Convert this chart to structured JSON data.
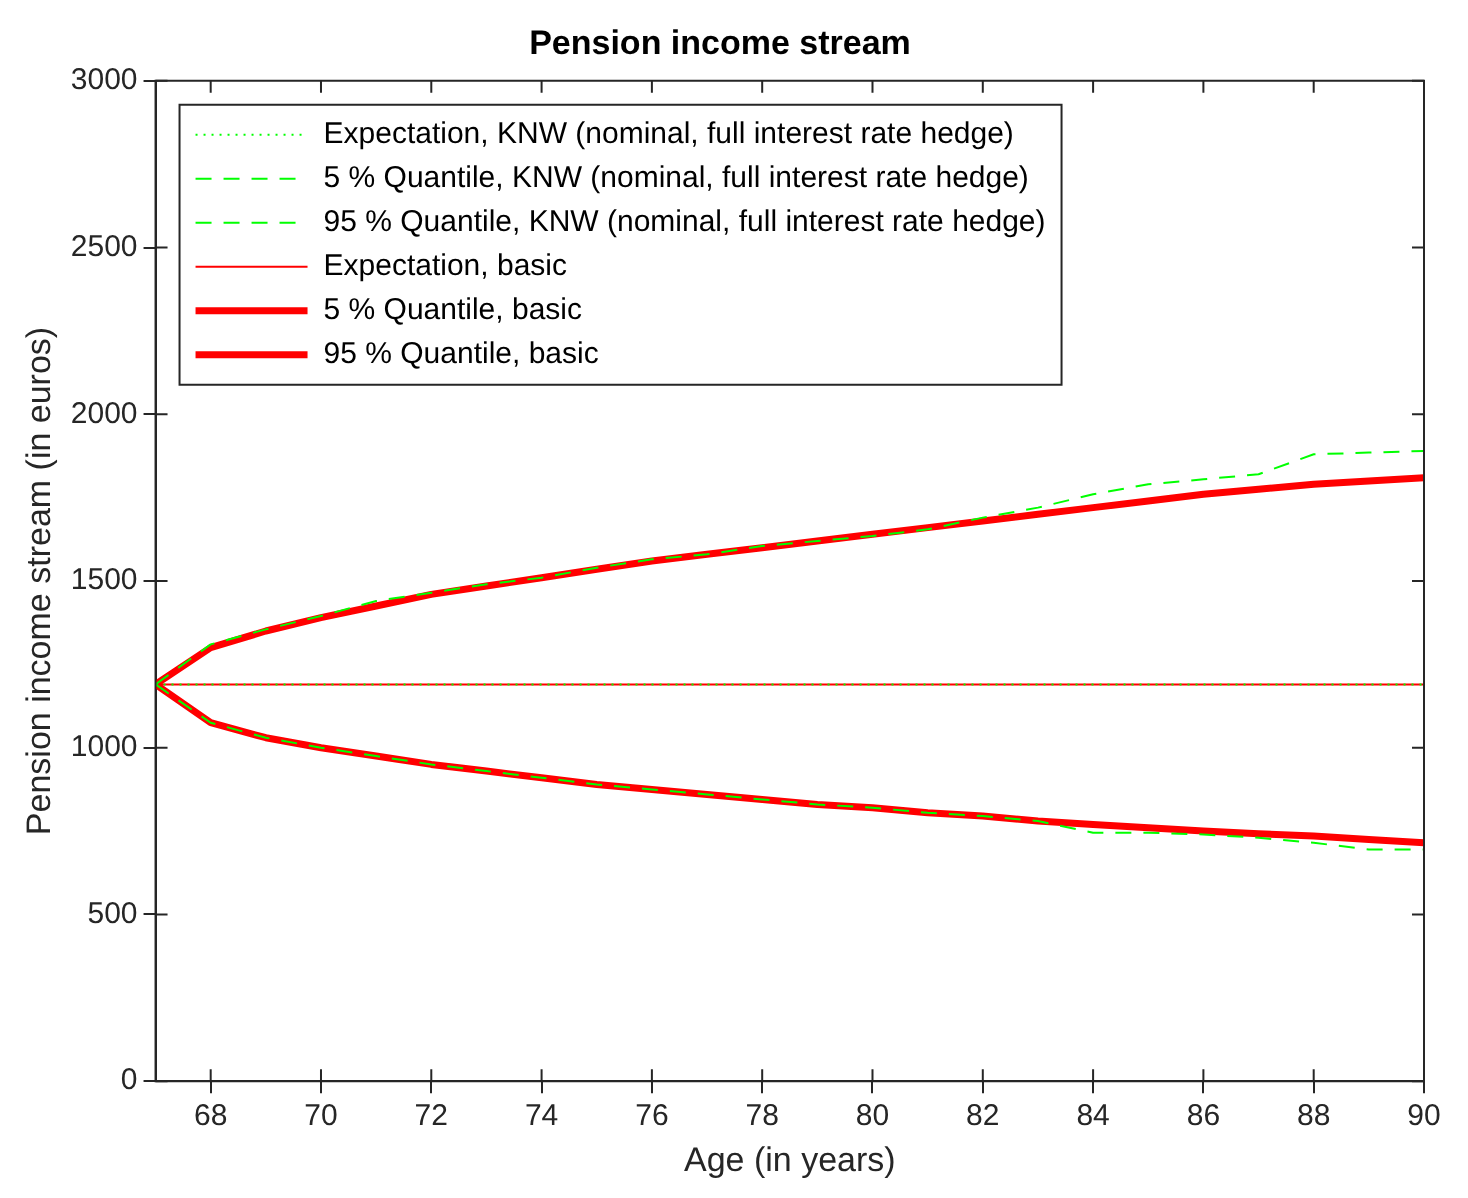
{
  "chart_data": {
    "type": "line",
    "title": "Pension income stream",
    "xlabel": "Age (in years)",
    "ylabel": "Pension income stream (in euros)",
    "x": [
      67,
      68,
      69,
      70,
      71,
      72,
      73,
      74,
      75,
      76,
      77,
      78,
      79,
      80,
      81,
      82,
      83,
      84,
      85,
      86,
      87,
      88,
      89,
      90
    ],
    "xlim": [
      67,
      90
    ],
    "xticks": [
      68,
      70,
      72,
      74,
      76,
      78,
      80,
      82,
      84,
      86,
      88,
      90
    ],
    "ylim": [
      0,
      3000
    ],
    "yticks": [
      0,
      500,
      1000,
      1500,
      2000,
      2500,
      3000
    ],
    "grid": false,
    "legend": "top left",
    "marker": "none",
    "series": [
      {
        "name": "Expectation, KNW (nominal, full interest rate hedge)",
        "color": "#00ff00",
        "line_style": "dotted",
        "values": [
          1190,
          1190,
          1190,
          1190,
          1190,
          1190,
          1190,
          1190,
          1190,
          1190,
          1190,
          1190,
          1190,
          1190,
          1190,
          1190,
          1190,
          1190,
          1190,
          1190,
          1190,
          1190,
          1190,
          1190
        ]
      },
      {
        "name": "5 % Quantile, KNW (nominal, full interest rate hedge)",
        "color": "#00ff00",
        "line_style": "dashed",
        "values": [
          1190,
          1075,
          1030,
          1000,
          975,
          950,
          930,
          910,
          890,
          875,
          860,
          845,
          830,
          820,
          805,
          795,
          780,
          745,
          745,
          740,
          730,
          715,
          695,
          695
        ]
      },
      {
        "name": "95 % Quantile, KNW (nominal, full interest rate hedge)",
        "color": "#00ff00",
        "line_style": "dashed",
        "values": [
          1190,
          1310,
          1355,
          1395,
          1440,
          1465,
          1490,
          1510,
          1540,
          1565,
          1580,
          1605,
          1620,
          1635,
          1655,
          1690,
          1720,
          1760,
          1790,
          1805,
          1820,
          1880,
          1885,
          1890
        ]
      },
      {
        "name": "Expectation, basic",
        "color": "#ff0000",
        "line_style": "solid",
        "values": [
          1190,
          1190,
          1190,
          1190,
          1190,
          1190,
          1190,
          1190,
          1190,
          1190,
          1190,
          1190,
          1190,
          1190,
          1190,
          1190,
          1190,
          1190,
          1190,
          1190,
          1190,
          1190,
          1190,
          1190
        ]
      },
      {
        "name": "5 % Quantile, basic",
        "color": "#ff0000",
        "line_style": "solid",
        "values": [
          1190,
          1075,
          1030,
          1000,
          975,
          950,
          930,
          910,
          890,
          875,
          860,
          845,
          830,
          820,
          805,
          795,
          780,
          770,
          760,
          750,
          742,
          735,
          725,
          715
        ]
      },
      {
        "name": "95 % Quantile, basic",
        "color": "#ff0000",
        "line_style": "solid",
        "values": [
          1190,
          1300,
          1350,
          1390,
          1425,
          1460,
          1485,
          1510,
          1535,
          1560,
          1580,
          1600,
          1620,
          1640,
          1660,
          1680,
          1700,
          1720,
          1740,
          1760,
          1775,
          1790,
          1800,
          1810
        ]
      }
    ]
  }
}
